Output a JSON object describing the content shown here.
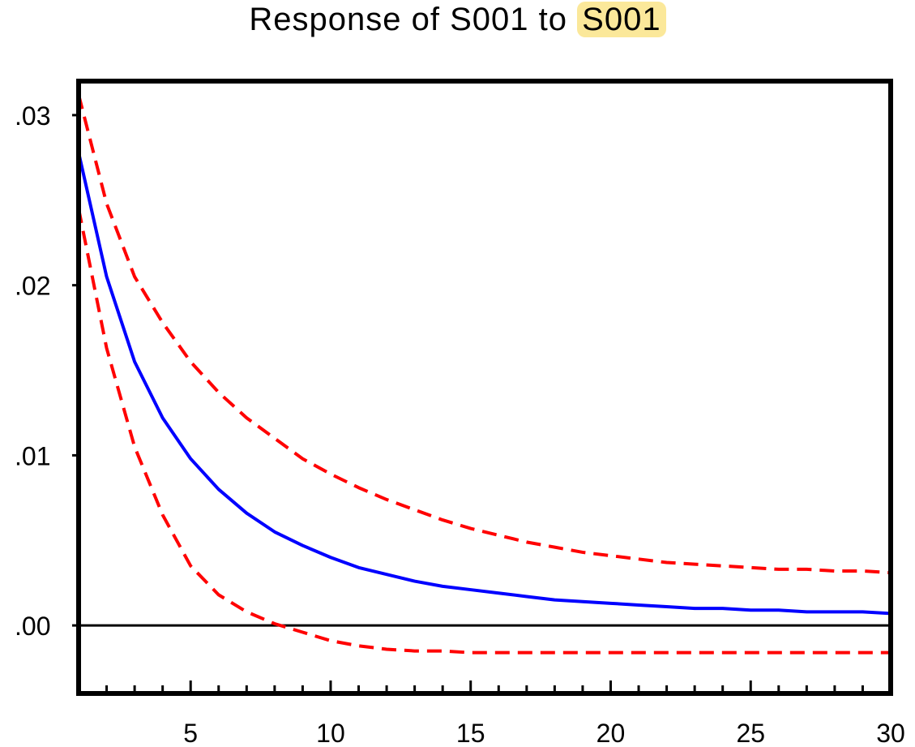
{
  "chart_data": {
    "type": "line",
    "title": "Response of S001 to S001",
    "title_prefix": "Response of S001 to ",
    "title_highlight": "S001",
    "xlim": [
      1,
      30
    ],
    "ylim": [
      -0.004,
      0.032
    ],
    "x_ticks": [
      5,
      10,
      15,
      20,
      25,
      30
    ],
    "x_tick_labels": [
      "5",
      "10",
      "15",
      "20",
      "25",
      "30"
    ],
    "y_ticks": [
      0.0,
      0.01,
      0.02,
      0.03
    ],
    "y_tick_labels": [
      ".00",
      ".01",
      ".02",
      ".03"
    ],
    "zero_line": true,
    "grid": false,
    "x": [
      1,
      2,
      3,
      4,
      5,
      6,
      7,
      8,
      9,
      10,
      11,
      12,
      13,
      14,
      15,
      16,
      17,
      18,
      19,
      20,
      21,
      22,
      23,
      24,
      25,
      26,
      27,
      28,
      29,
      30
    ],
    "series": [
      {
        "role": "response",
        "style": "solid",
        "color": "#0000ff",
        "values": [
          0.0278,
          0.0205,
          0.0155,
          0.0122,
          0.0098,
          0.008,
          0.0066,
          0.0055,
          0.0047,
          0.004,
          0.0034,
          0.003,
          0.0026,
          0.0023,
          0.0021,
          0.0019,
          0.0017,
          0.0015,
          0.0014,
          0.0013,
          0.0012,
          0.0011,
          0.001,
          0.001,
          0.0009,
          0.0009,
          0.0008,
          0.0008,
          0.0008,
          0.0007
        ]
      },
      {
        "role": "upper_band",
        "style": "dashed",
        "color": "#ff0000",
        "values": [
          0.0312,
          0.0248,
          0.0205,
          0.0178,
          0.0155,
          0.0137,
          0.0122,
          0.011,
          0.0098,
          0.0089,
          0.0081,
          0.0074,
          0.0068,
          0.0062,
          0.0057,
          0.0053,
          0.0049,
          0.0046,
          0.0043,
          0.0041,
          0.0039,
          0.0037,
          0.0036,
          0.0035,
          0.0034,
          0.0033,
          0.0033,
          0.0032,
          0.0032,
          0.0031
        ]
      },
      {
        "role": "lower_band",
        "style": "dashed",
        "color": "#ff0000",
        "values": [
          0.0245,
          0.0163,
          0.0105,
          0.0065,
          0.0035,
          0.0018,
          0.0008,
          0.0001,
          -0.0004,
          -0.0009,
          -0.0012,
          -0.0014,
          -0.0015,
          -0.0015,
          -0.0016,
          -0.0016,
          -0.0016,
          -0.0016,
          -0.0016,
          -0.0016,
          -0.0016,
          -0.0016,
          -0.0016,
          -0.0016,
          -0.0016,
          -0.0016,
          -0.0016,
          -0.0016,
          -0.0016,
          -0.0016
        ]
      }
    ]
  }
}
